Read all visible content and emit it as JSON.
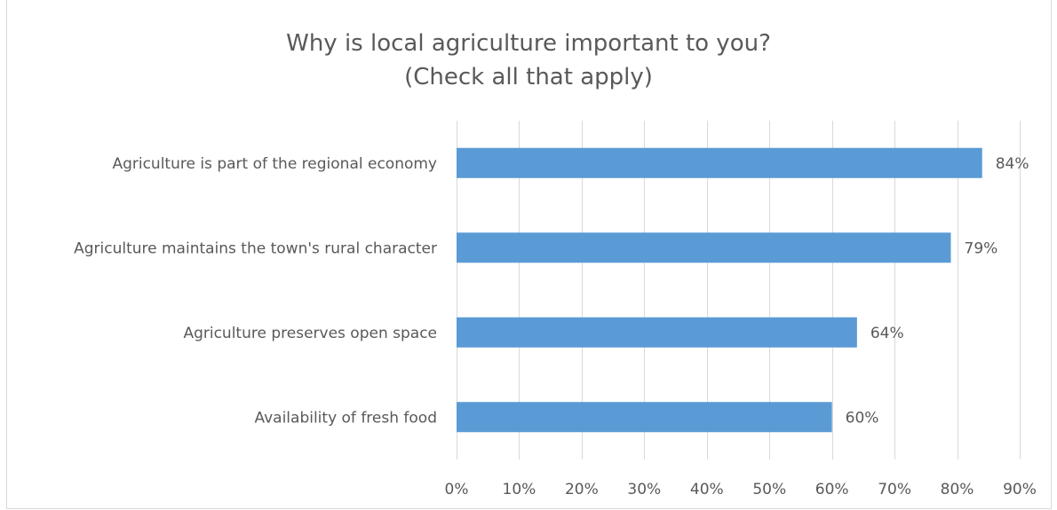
{
  "chart_data": {
    "type": "bar",
    "orientation": "horizontal",
    "title_line1": "Why is local agriculture important to you?",
    "title_line2": "(Check all that apply)",
    "categories": [
      "Agriculture is part of the regional economy",
      "Agriculture maintains the town's rural character",
      "Agriculture preserves open space",
      "Availability of fresh food"
    ],
    "values": [
      84,
      79,
      64,
      60
    ],
    "data_labels": [
      "84%",
      "79%",
      "64%",
      "60%"
    ],
    "xlim": [
      0,
      90
    ],
    "x_ticks": [
      0,
      10,
      20,
      30,
      40,
      50,
      60,
      70,
      80,
      90
    ],
    "x_tick_labels": [
      "0%",
      "10%",
      "20%",
      "30%",
      "40%",
      "50%",
      "60%",
      "70%",
      "80%",
      "90%"
    ],
    "grid": true,
    "legend": "none",
    "bar_color": "#5b9bd5",
    "grid_color": "#d9d9d9",
    "text_color": "#595959"
  }
}
